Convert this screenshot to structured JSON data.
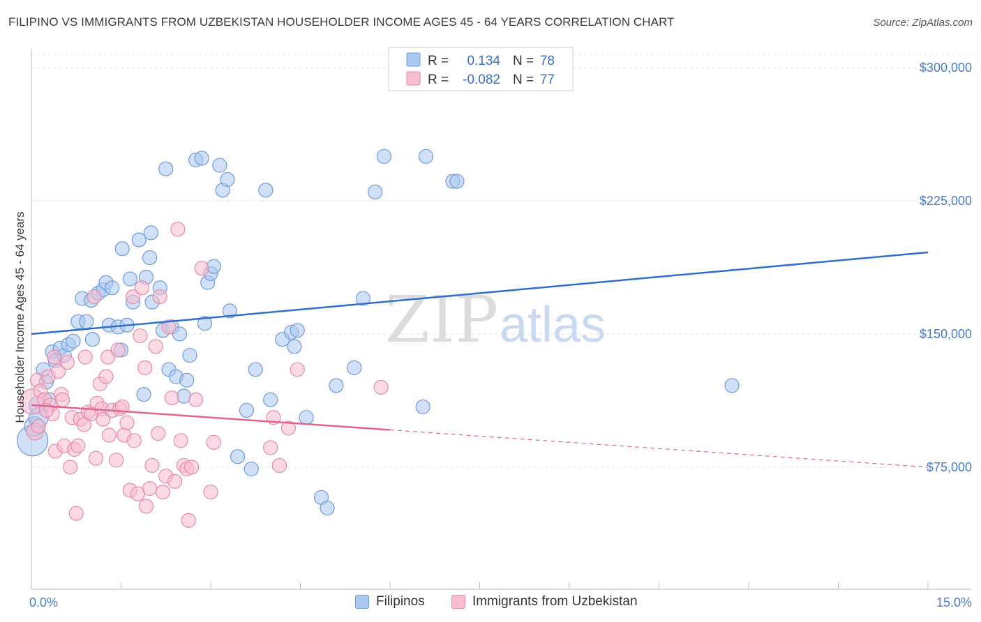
{
  "title": "FILIPINO VS IMMIGRANTS FROM UZBEKISTAN HOUSEHOLDER INCOME AGES 45 - 64 YEARS CORRELATION CHART",
  "source": "Source: ZipAtlas.com",
  "watermark": {
    "zip": "ZIP",
    "atlas": "atlas"
  },
  "legend_box": {
    "rows": [
      {
        "r_label": "R =",
        "r_value": "0.134",
        "n_label": "N =",
        "n_value": "78",
        "color": "#aac8f0",
        "stroke": "#6f9ad8"
      },
      {
        "r_label": "R =",
        "r_value": "-0.082",
        "n_label": "N =",
        "n_value": "77",
        "color": "#f7bcd0",
        "stroke": "#e38aa8"
      }
    ]
  },
  "bottom_legend": [
    {
      "label": "Filipinos",
      "color": "#aac8f0",
      "stroke": "#6f9ad8"
    },
    {
      "label": "Immigrants from Uzbekistan",
      "color": "#f7bcd0",
      "stroke": "#e38aa8"
    }
  ],
  "chart_data": {
    "type": "scatter",
    "title": "FILIPINO VS IMMIGRANTS FROM UZBEKISTAN HOUSEHOLDER INCOME AGES 45 - 64 YEARS CORRELATION CHART",
    "xlabel": "",
    "ylabel": "Householder Income Ages 45 - 64 years",
    "xlim": [
      0,
      15
    ],
    "ylim": [
      10000,
      315000
    ],
    "x_ticks": [
      0,
      1.5,
      3,
      4.5,
      6,
      7.5,
      9,
      10.5,
      12,
      13.5,
      15
    ],
    "x_tick_labels": {
      "0": "0.0%",
      "15": "15.0%"
    },
    "y_ticks": [
      75000,
      150000,
      225000,
      300000
    ],
    "y_tick_labels": [
      "$75,000",
      "$150,000",
      "$225,000",
      "$300,000"
    ],
    "grid": true,
    "legend": "top-center",
    "series": [
      {
        "name": "Filipinos",
        "color": "#aac8f0",
        "stroke": "#6f9ad8",
        "line_color": "#2f6fca",
        "trend": {
          "x": [
            0,
            15
          ],
          "y": [
            150000,
            196000
          ],
          "dashed_from": null
        },
        "points": [
          [
            0.02,
            90000,
            22
          ],
          [
            0.05,
            98000,
            14
          ],
          [
            0.1,
            110000,
            12
          ],
          [
            0.12,
            103000,
            14
          ],
          [
            0.2,
            130000,
            10
          ],
          [
            0.25,
            123000,
            10
          ],
          [
            0.35,
            140000,
            10
          ],
          [
            0.4,
            135000,
            10
          ],
          [
            0.48,
            142000,
            10
          ],
          [
            0.55,
            138000,
            10
          ],
          [
            0.62,
            144000,
            10
          ],
          [
            0.7,
            146000,
            10
          ],
          [
            0.78,
            157000,
            10
          ],
          [
            0.85,
            170000,
            10
          ],
          [
            0.92,
            157000,
            10
          ],
          [
            1.0,
            169000,
            10
          ],
          [
            1.02,
            147000,
            10
          ],
          [
            1.12,
            173000,
            10
          ],
          [
            1.2,
            175000,
            10
          ],
          [
            1.25,
            179000,
            10
          ],
          [
            1.3,
            155000,
            10
          ],
          [
            1.35,
            176000,
            10
          ],
          [
            1.45,
            154000,
            10
          ],
          [
            1.5,
            141000,
            10
          ],
          [
            1.52,
            198000,
            10
          ],
          [
            1.6,
            155000,
            10
          ],
          [
            1.65,
            181000,
            10
          ],
          [
            1.7,
            168000,
            10
          ],
          [
            1.8,
            203000,
            10
          ],
          [
            1.88,
            116000,
            10
          ],
          [
            1.92,
            182000,
            10
          ],
          [
            1.98,
            193000,
            10
          ],
          [
            2.0,
            207000,
            10
          ],
          [
            2.02,
            168000,
            10
          ],
          [
            2.15,
            176000,
            10
          ],
          [
            2.2,
            152000,
            10
          ],
          [
            2.25,
            243000,
            10
          ],
          [
            2.3,
            130000,
            10
          ],
          [
            2.35,
            154000,
            10
          ],
          [
            2.42,
            126000,
            10
          ],
          [
            2.48,
            150000,
            10
          ],
          [
            2.55,
            115000,
            10
          ],
          [
            2.6,
            124000,
            10
          ],
          [
            2.65,
            138000,
            10
          ],
          [
            2.75,
            248000,
            10
          ],
          [
            2.85,
            249000,
            10
          ],
          [
            2.9,
            156000,
            10
          ],
          [
            2.95,
            179000,
            10
          ],
          [
            3.0,
            184000,
            10
          ],
          [
            3.05,
            188000,
            10
          ],
          [
            3.15,
            245000,
            10
          ],
          [
            3.2,
            231000,
            10
          ],
          [
            3.28,
            237000,
            10
          ],
          [
            3.32,
            163000,
            10
          ],
          [
            3.45,
            81000,
            10
          ],
          [
            3.6,
            107000,
            10
          ],
          [
            3.68,
            74000,
            10
          ],
          [
            3.75,
            130000,
            10
          ],
          [
            3.92,
            231000,
            10
          ],
          [
            4.0,
            113000,
            10
          ],
          [
            4.2,
            147000,
            10
          ],
          [
            4.35,
            151000,
            10
          ],
          [
            4.4,
            143000,
            10
          ],
          [
            4.45,
            152000,
            10
          ],
          [
            4.6,
            103000,
            10
          ],
          [
            4.85,
            58000,
            10
          ],
          [
            4.95,
            52000,
            10
          ],
          [
            5.1,
            121000,
            10
          ],
          [
            5.4,
            131000,
            10
          ],
          [
            5.55,
            170000,
            10
          ],
          [
            5.75,
            230000,
            10
          ],
          [
            5.9,
            250000,
            10
          ],
          [
            6.55,
            109000,
            10
          ],
          [
            6.6,
            250000,
            10
          ],
          [
            7.05,
            236000,
            10
          ],
          [
            7.12,
            236000,
            10
          ],
          [
            11.72,
            121000,
            10
          ],
          [
            0.3,
            113000,
            10
          ]
        ]
      },
      {
        "name": "Immigrants from Uzbekistan",
        "color": "#f7bcd0",
        "stroke": "#e38aa8",
        "line_color": "#e0648e",
        "trend": {
          "x": [
            0,
            15
          ],
          "y": [
            110000,
            75000
          ],
          "dashed_from": 6
        },
        "points": [
          [
            0.02,
            112000,
            18
          ],
          [
            0.06,
            95000,
            12
          ],
          [
            0.1,
            124000,
            10
          ],
          [
            0.15,
            118000,
            10
          ],
          [
            0.22,
            113000,
            10
          ],
          [
            0.28,
            126000,
            10
          ],
          [
            0.32,
            110000,
            10
          ],
          [
            0.35,
            105000,
            10
          ],
          [
            0.38,
            137000,
            10
          ],
          [
            0.4,
            84000,
            10
          ],
          [
            0.45,
            129000,
            10
          ],
          [
            0.5,
            116000,
            10
          ],
          [
            0.52,
            113000,
            10
          ],
          [
            0.55,
            87000,
            10
          ],
          [
            0.6,
            134000,
            10
          ],
          [
            0.65,
            75000,
            10
          ],
          [
            0.68,
            103000,
            10
          ],
          [
            0.72,
            85000,
            10
          ],
          [
            0.75,
            49000,
            10
          ],
          [
            0.78,
            87000,
            10
          ],
          [
            0.82,
            102000,
            10
          ],
          [
            0.88,
            99000,
            10
          ],
          [
            0.9,
            137000,
            10
          ],
          [
            0.95,
            106000,
            10
          ],
          [
            1.0,
            105000,
            10
          ],
          [
            1.05,
            171000,
            10
          ],
          [
            1.08,
            80000,
            10
          ],
          [
            1.1,
            111000,
            10
          ],
          [
            1.15,
            122000,
            10
          ],
          [
            1.18,
            108000,
            10
          ],
          [
            1.2,
            102000,
            10
          ],
          [
            1.25,
            126000,
            10
          ],
          [
            1.28,
            137000,
            10
          ],
          [
            1.3,
            93000,
            10
          ],
          [
            1.35,
            107000,
            10
          ],
          [
            1.42,
            79000,
            10
          ],
          [
            1.45,
            141000,
            10
          ],
          [
            1.48,
            108000,
            10
          ],
          [
            1.52,
            109000,
            10
          ],
          [
            1.55,
            93000,
            10
          ],
          [
            1.6,
            100000,
            10
          ],
          [
            1.65,
            62000,
            10
          ],
          [
            1.7,
            171000,
            10
          ],
          [
            1.72,
            90000,
            10
          ],
          [
            1.78,
            60000,
            10
          ],
          [
            1.82,
            149000,
            10
          ],
          [
            1.85,
            176000,
            10
          ],
          [
            1.9,
            131000,
            10
          ],
          [
            1.92,
            53000,
            10
          ],
          [
            1.98,
            63000,
            10
          ],
          [
            2.02,
            76000,
            10
          ],
          [
            2.08,
            143000,
            10
          ],
          [
            2.12,
            94000,
            10
          ],
          [
            2.15,
            171000,
            10
          ],
          [
            2.2,
            61000,
            10
          ],
          [
            2.25,
            70000,
            10
          ],
          [
            2.3,
            154000,
            10
          ],
          [
            2.35,
            114000,
            10
          ],
          [
            2.4,
            67000,
            10
          ],
          [
            2.45,
            209000,
            10
          ],
          [
            2.5,
            90000,
            10
          ],
          [
            2.55,
            76000,
            10
          ],
          [
            2.6,
            74000,
            10
          ],
          [
            2.63,
            45000,
            10
          ],
          [
            2.68,
            75000,
            10
          ],
          [
            2.75,
            113000,
            10
          ],
          [
            2.85,
            187000,
            10
          ],
          [
            3.0,
            61000,
            10
          ],
          [
            3.05,
            89000,
            10
          ],
          [
            4.0,
            86000,
            10
          ],
          [
            4.05,
            103000,
            10
          ],
          [
            4.15,
            76000,
            10
          ],
          [
            4.3,
            97000,
            10
          ],
          [
            4.45,
            130000,
            10
          ],
          [
            5.85,
            120000,
            10
          ],
          [
            0.12,
            98000,
            10
          ],
          [
            0.25,
            107000,
            10
          ]
        ]
      }
    ]
  }
}
